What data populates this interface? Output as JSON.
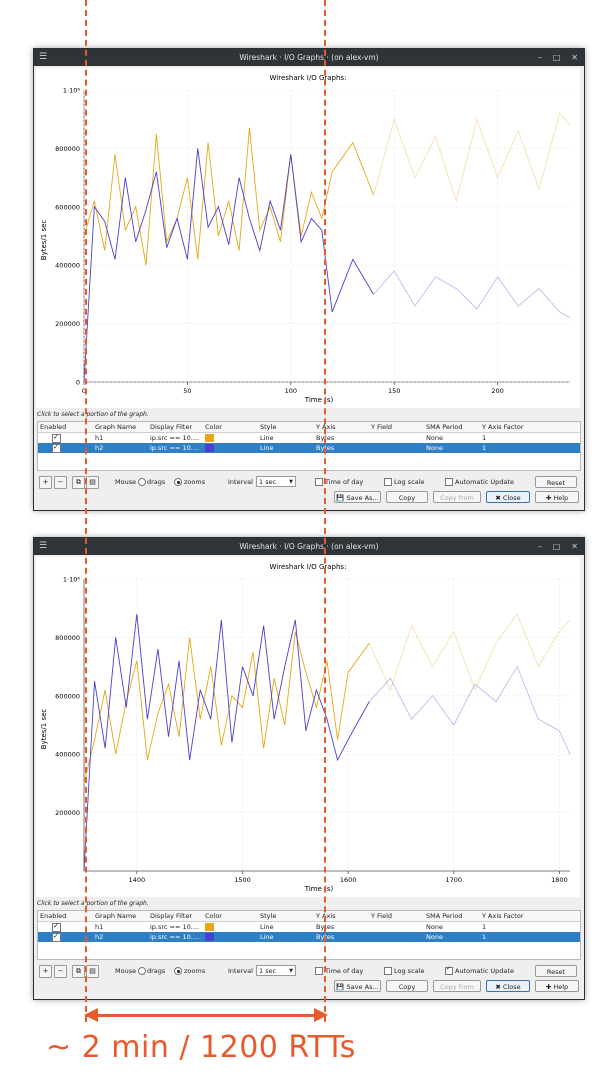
{
  "annotation": {
    "text": "~ 2 min / 1200 RTTs",
    "color": "#e65a2b"
  },
  "windows": [
    {
      "title": "Wireshark · I/O Graphs · (on alex-vm)",
      "chart_title": "Wireshark I/O Graphs:",
      "hint": "Click to select a portion of the graph.",
      "chart_data": {
        "type": "line",
        "title": "Wireshark I/O Graphs:",
        "xlabel": "Time (s)",
        "ylabel": "Bytes/1 sec",
        "xlim": [
          0,
          235
        ],
        "ylim": [
          0,
          1000000
        ],
        "x_ticks": [
          "0",
          "50",
          "100",
          "150",
          "200"
        ],
        "y_ticks": [
          "0",
          "200000",
          "400000",
          "600000",
          "800000",
          "1·10⁶"
        ],
        "series": [
          {
            "name": "h1",
            "color": "#e6a817",
            "x": [
              0,
              5,
              10,
              15,
              20,
              25,
              30,
              35,
              40,
              45,
              50,
              55,
              60,
              65,
              70,
              75,
              80,
              85,
              90,
              95,
              100,
              105,
              110,
              115,
              120,
              130,
              140,
              150,
              160,
              170,
              180,
              190,
              200,
              210,
              220,
              230,
              235
            ],
            "values": [
              500000,
              620000,
              450000,
              780000,
              520000,
              600000,
              400000,
              850000,
              480000,
              560000,
              700000,
              420000,
              820000,
              500000,
              620000,
              450000,
              870000,
              520000,
              600000,
              480000,
              780000,
              500000,
              650000,
              560000,
              720000,
              820000,
              640000,
              900000,
              700000,
              840000,
              620000,
              900000,
              700000,
              860000,
              660000,
              920000,
              880000
            ]
          },
          {
            "name": "h2",
            "color": "#4a3fd0",
            "x": [
              0,
              5,
              10,
              15,
              20,
              25,
              30,
              35,
              40,
              45,
              50,
              55,
              60,
              65,
              70,
              75,
              80,
              85,
              90,
              95,
              100,
              105,
              110,
              115,
              120,
              130,
              140,
              150,
              160,
              170,
              180,
              190,
              200,
              210,
              220,
              230,
              235
            ],
            "values": [
              0,
              600000,
              550000,
              420000,
              700000,
              480000,
              590000,
              720000,
              460000,
              560000,
              420000,
              800000,
              530000,
              600000,
              470000,
              700000,
              560000,
              450000,
              620000,
              520000,
              780000,
              480000,
              560000,
              520000,
              240000,
              420000,
              300000,
              380000,
              260000,
              360000,
              320000,
              250000,
              360000,
              260000,
              320000,
              240000,
              220000
            ]
          }
        ]
      },
      "table": {
        "headers": [
          "Enabled",
          "Graph Name",
          "Display Filter",
          "Color",
          "Style",
          "Y Axis",
          "Y Field",
          "SMA Period",
          "Y Axis Factor"
        ],
        "rows": [
          {
            "name": "h1",
            "filter": "ip.src == 10....",
            "color": "#e6a817",
            "style": "Line",
            "yaxis": "Bytes",
            "yfield": "",
            "sma": "None",
            "factor": "1",
            "selected": false
          },
          {
            "name": "h2",
            "filter": "ip.src == 10....",
            "color": "#4a3fd0",
            "style": "Line",
            "yaxis": "Bytes",
            "yfield": "",
            "sma": "None",
            "factor": "1",
            "selected": true
          }
        ]
      },
      "controls": {
        "mouse_label": "Mouse",
        "drags": "drags",
        "zooms": "zooms",
        "interval_label": "Interval",
        "interval": "1 sec",
        "time_of_day": "Time of day",
        "log_scale": "Log scale",
        "auto_update": "Automatic Update",
        "auto_update_checked": false,
        "reset": "Reset",
        "save_as": "Save As...",
        "copy": "Copy",
        "copy_from": "Copy from",
        "close": "Close",
        "help": "Help"
      }
    },
    {
      "title": "Wireshark · I/O Graphs · (on alex-vm)",
      "chart_title": "Wireshark I/O Graphs:",
      "hint": "Click to select a portion of the graph.",
      "chart_data": {
        "type": "line",
        "title": "Wireshark I/O Graphs:",
        "xlabel": "Time (s)",
        "ylabel": "Bytes/1 sec",
        "xlim": [
          1350,
          1810
        ],
        "ylim": [
          0,
          1000000
        ],
        "x_ticks": [
          "1400",
          "1500",
          "1600",
          "1700",
          "1800"
        ],
        "y_ticks": [
          "200000",
          "400000",
          "600000",
          "800000",
          "1·10⁶"
        ],
        "series": [
          {
            "name": "h1",
            "color": "#e6a817",
            "x": [
              1350,
              1360,
              1370,
              1380,
              1390,
              1400,
              1410,
              1420,
              1430,
              1440,
              1450,
              1460,
              1470,
              1480,
              1490,
              1500,
              1510,
              1520,
              1530,
              1540,
              1550,
              1560,
              1570,
              1580,
              1590,
              1600,
              1620,
              1640,
              1660,
              1680,
              1700,
              1720,
              1740,
              1760,
              1780,
              1800,
              1810
            ],
            "values": [
              300000,
              450000,
              620000,
              400000,
              580000,
              720000,
              380000,
              540000,
              640000,
              460000,
              800000,
              520000,
              700000,
              430000,
              600000,
              560000,
              750000,
              420000,
              660000,
              500000,
              820000,
              680000,
              560000,
              720000,
              450000,
              680000,
              780000,
              620000,
              840000,
              700000,
              820000,
              620000,
              780000,
              880000,
              700000,
              820000,
              860000
            ]
          },
          {
            "name": "h2",
            "color": "#4a3fd0",
            "x": [
              1350,
              1360,
              1370,
              1380,
              1390,
              1400,
              1410,
              1420,
              1430,
              1440,
              1450,
              1460,
              1470,
              1480,
              1490,
              1500,
              1510,
              1520,
              1530,
              1540,
              1550,
              1560,
              1570,
              1580,
              1590,
              1600,
              1620,
              1640,
              1660,
              1680,
              1700,
              1720,
              1740,
              1760,
              1780,
              1800,
              1810
            ],
            "values": [
              0,
              650000,
              420000,
              800000,
              560000,
              880000,
              520000,
              760000,
              460000,
              720000,
              380000,
              620000,
              520000,
              860000,
              440000,
              700000,
              600000,
              840000,
              520000,
              700000,
              860000,
              480000,
              620000,
              520000,
              380000,
              450000,
              580000,
              660000,
              520000,
              600000,
              500000,
              640000,
              580000,
              700000,
              520000,
              480000,
              400000
            ]
          }
        ]
      },
      "table": {
        "headers": [
          "Enabled",
          "Graph Name",
          "Display Filter",
          "Color",
          "Style",
          "Y Axis",
          "Y Field",
          "SMA Period",
          "Y Axis Factor"
        ],
        "rows": [
          {
            "name": "h1",
            "filter": "ip.src == 10....",
            "color": "#e6a817",
            "style": "Line",
            "yaxis": "Bytes",
            "yfield": "",
            "sma": "None",
            "factor": "1",
            "selected": false
          },
          {
            "name": "h2",
            "filter": "ip.src == 10....",
            "color": "#4a3fd0",
            "style": "Line",
            "yaxis": "Bytes",
            "yfield": "",
            "sma": "None",
            "factor": "1",
            "selected": true
          }
        ]
      },
      "controls": {
        "mouse_label": "Mouse",
        "drags": "drags",
        "zooms": "zooms",
        "interval_label": "Interval",
        "interval": "1 sec",
        "time_of_day": "Time of day",
        "log_scale": "Log scale",
        "auto_update": "Automatic Update",
        "auto_update_checked": true,
        "reset": "Reset",
        "save_as": "Save As...",
        "copy": "Copy",
        "copy_from": "Copy from",
        "close": "Close",
        "help": "Help"
      }
    }
  ]
}
